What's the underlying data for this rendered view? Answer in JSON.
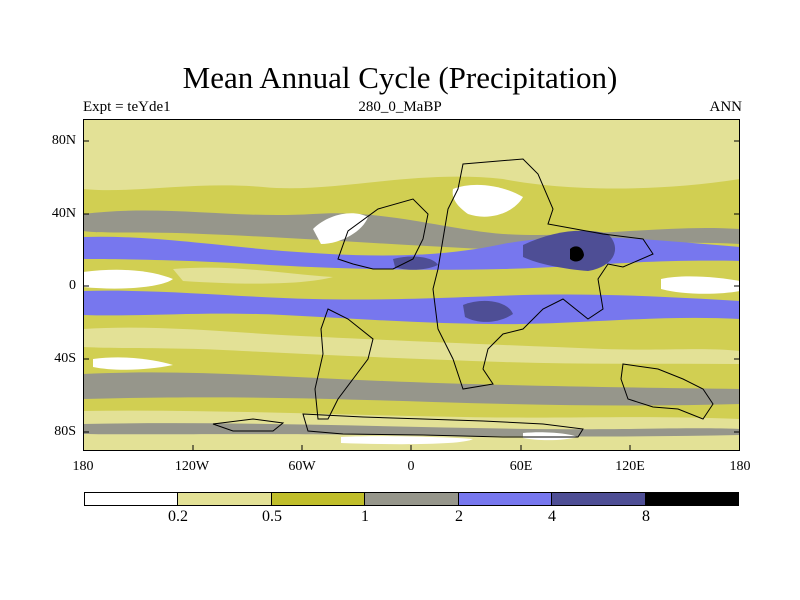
{
  "title": "Mean Annual Cycle (Precipitation)",
  "subtitle_left": "Expt = teYde1",
  "subtitle_center": "280_0_MaBP",
  "subtitle_right": "ANN",
  "map": {
    "lat_ticks": [
      "80N",
      "40N",
      "0",
      "40S",
      "80S"
    ],
    "lon_ticks": [
      "180",
      "120W",
      "60W",
      "0",
      "60E",
      "120E",
      "180"
    ],
    "background_color": "#d1cf52"
  },
  "colorbar": {
    "labels": [
      "0.2",
      "0.5",
      "1",
      "2",
      "4",
      "8"
    ],
    "colors": [
      "#ffffff",
      "#e3e196",
      "#c0be2a",
      "#96968b",
      "#7777ee",
      "#4e4e95",
      "#000000"
    ],
    "color_names": [
      "white",
      "pale-yellow",
      "olive",
      "grey",
      "light-blue",
      "dark-blue",
      "black"
    ]
  }
}
